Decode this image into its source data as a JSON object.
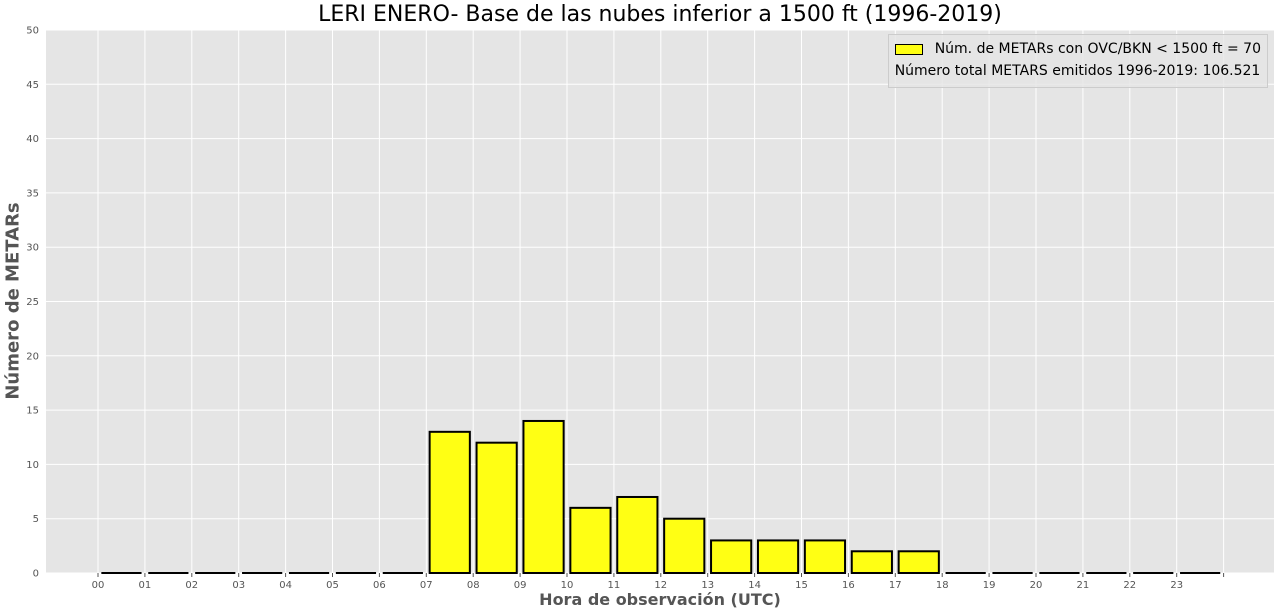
{
  "chart_data": {
    "type": "bar",
    "title": "LERI ENERO- Base de las nubes inferior a 1500 ft (1996-2019)",
    "xlabel": "Hora de observación (UTC)",
    "ylabel": "Número de METARs",
    "categories": [
      "00",
      "01",
      "02",
      "03",
      "04",
      "05",
      "06",
      "07",
      "08",
      "09",
      "10",
      "11",
      "12",
      "13",
      "14",
      "15",
      "16",
      "17",
      "18",
      "19",
      "20",
      "21",
      "22",
      "23"
    ],
    "values": [
      0,
      0,
      0,
      0,
      0,
      0,
      0,
      13,
      12,
      14,
      6,
      7,
      5,
      3,
      3,
      3,
      2,
      2,
      0,
      0,
      0,
      0,
      0,
      0
    ],
    "ylim": [
      0,
      50
    ],
    "yticks": [
      0,
      5,
      10,
      15,
      20,
      25,
      30,
      35,
      40,
      45,
      50
    ],
    "grid": true,
    "bar_color": "#ffff14",
    "edge_color": "#000000",
    "legend": {
      "label": "Núm. de METARs con OVC/BKN < 1500 ft = 70",
      "note": "Número total METARS emitidos 1996-2019: 106.521",
      "position": "top-right"
    }
  }
}
